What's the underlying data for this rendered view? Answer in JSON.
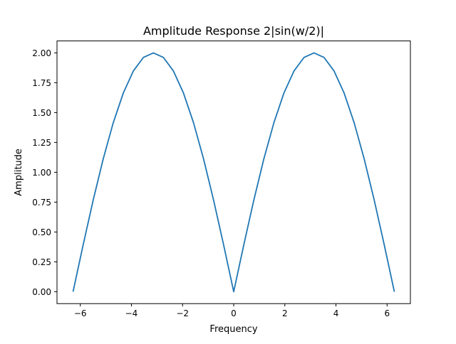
{
  "chart_data": {
    "type": "line",
    "title": "Amplitude Response 2|sin(w/2)|",
    "xlabel": "Frequency",
    "ylabel": "Amplitude",
    "xlim": [
      -6.9115,
      6.9115
    ],
    "ylim": [
      -0.1,
      2.1
    ],
    "xticks": [
      -6,
      -4,
      -2,
      0,
      2,
      4,
      6
    ],
    "xtick_labels": [
      "−6",
      "−4",
      "−2",
      "0",
      "2",
      "4",
      "6"
    ],
    "yticks": [
      0.0,
      0.25,
      0.5,
      0.75,
      1.0,
      1.25,
      1.5,
      1.75,
      2.0
    ],
    "ytick_labels": [
      "0.00",
      "0.25",
      "0.50",
      "0.75",
      "1.00",
      "1.25",
      "1.50",
      "1.75",
      "2.00"
    ],
    "grid": false,
    "legend": "none",
    "series": [
      {
        "color": "#1f77b4",
        "x": [
          -6.2832,
          -5.8905,
          -5.4978,
          -5.1051,
          -4.7124,
          -4.3197,
          -3.927,
          -3.5343,
          -3.1416,
          -2.7489,
          -2.3562,
          -1.9635,
          -1.5708,
          -1.1781,
          -0.7854,
          -0.3927,
          0.0,
          0.3927,
          0.7854,
          1.1781,
          1.5708,
          1.9635,
          2.3562,
          2.7489,
          3.1416,
          3.5343,
          3.927,
          4.3197,
          4.7124,
          5.1051,
          5.4978,
          5.8905,
          6.2832
        ],
        "values": [
          0.0,
          0.3902,
          0.7654,
          1.1111,
          1.4142,
          1.6629,
          1.8478,
          1.9616,
          2.0,
          1.9616,
          1.8478,
          1.6629,
          1.4142,
          1.1111,
          0.7654,
          0.3902,
          0.0,
          0.3902,
          0.7654,
          1.1111,
          1.4142,
          1.6629,
          1.8478,
          1.9616,
          2.0,
          1.9616,
          1.8478,
          1.6629,
          1.4142,
          1.1111,
          0.7654,
          0.3902,
          0.0
        ]
      }
    ]
  }
}
